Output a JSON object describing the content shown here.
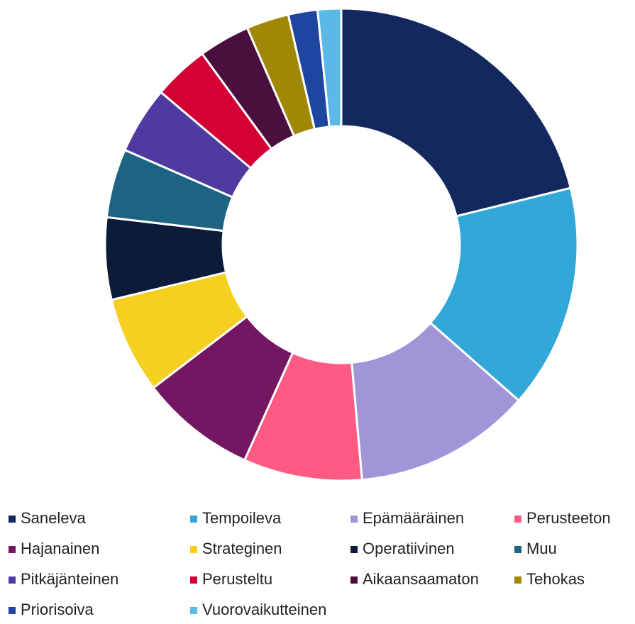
{
  "chart_data": {
    "type": "donut",
    "categories": [
      "Saneleva",
      "Tempoileva",
      "Epämääräinen",
      "Perusteeton",
      "Hajanainen",
      "Strateginen",
      "Operatiivinen",
      "Muu",
      "Pitkäjänteinen",
      "Perusteltu",
      "Aikaansaamaton",
      "Tehokas",
      "Priorisoiva",
      "Vuorovaikutteinen"
    ],
    "values": [
      21.1,
      15.3,
      12.1,
      8.1,
      7.9,
      6.6,
      5.6,
      4.7,
      4.6,
      3.8,
      3.5,
      2.9,
      2.0,
      1.6
    ],
    "colors": [
      "#13285e",
      "#32a8d8",
      "#a195d8",
      "#ff5a82",
      "#731763",
      "#f5d020",
      "#0c1b3a",
      "#1c6482",
      "#4f3aa0",
      "#d40035",
      "#4a0f3c",
      "#a08705",
      "#1e46a0",
      "#5ab9e6"
    ],
    "legend": "bottom"
  }
}
